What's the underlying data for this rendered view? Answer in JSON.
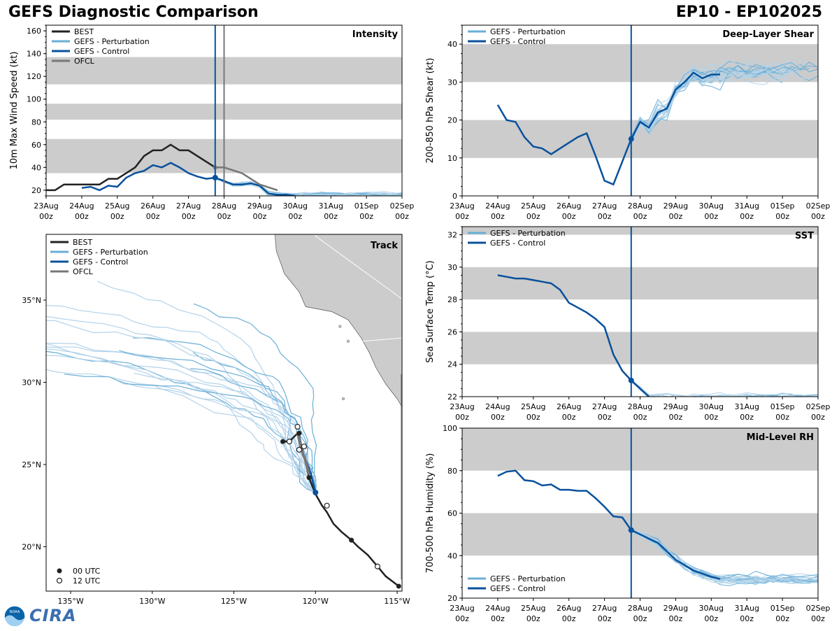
{
  "header": {
    "title": "GEFS Diagnostic Comparison",
    "storm_id": "EP10 - EP102025"
  },
  "logo": {
    "text": "CIRA",
    "noaa_text": "NOAA"
  },
  "colors": {
    "best": "#222222",
    "perturbation": "#6aaed6",
    "perturbation_faint": "#b3d3ea",
    "control": "#08519c",
    "ofcl": "#777777",
    "band": "#cccccc",
    "land": "#cccccc"
  },
  "time_axis": {
    "ticks": [
      0,
      1,
      2,
      3,
      4,
      5,
      6,
      7,
      8,
      9,
      10
    ],
    "labels_top": [
      "23Aug",
      "24Aug",
      "25Aug",
      "26Aug",
      "27Aug",
      "28Aug",
      "29Aug",
      "30Aug",
      "31Aug",
      "01Sep",
      "02Sep"
    ],
    "labels_bottom": [
      "00z",
      "00z",
      "00z",
      "00z",
      "00z",
      "00z",
      "00z",
      "00z",
      "00z",
      "00z",
      "00z"
    ],
    "range": [
      0,
      10
    ],
    "current_time": 4.75,
    "ofcl_time": 5.0
  },
  "chart_data": [
    {
      "id": "intensity",
      "type": "line",
      "title": "Intensity",
      "xlabel": "",
      "ylabel": "10m Max Wind Speed (kt)",
      "ylim": [
        15,
        165
      ],
      "yticks": [
        20,
        40,
        60,
        80,
        100,
        120,
        140,
        160
      ],
      "bands": [
        [
          35,
          65
        ],
        [
          82,
          96
        ],
        [
          113,
          137
        ]
      ],
      "legend": [
        "BEST",
        "GEFS - Perturbation",
        "GEFS - Control",
        "OFCL"
      ],
      "series": [
        {
          "name": "BEST",
          "x": [
            0,
            0.25,
            0.5,
            0.75,
            1,
            1.25,
            1.5,
            1.75,
            2,
            2.25,
            2.5,
            2.75,
            3,
            3.25,
            3.5,
            3.75,
            4,
            4.25,
            4.5,
            4.75
          ],
          "y": [
            20,
            20,
            25,
            25,
            25,
            25,
            25,
            30,
            30,
            35,
            40,
            50,
            55,
            55,
            60,
            55,
            55,
            50,
            45,
            40
          ]
        },
        {
          "name": "GEFS - Control",
          "x": [
            1,
            1.25,
            1.5,
            1.75,
            2,
            2.25,
            2.5,
            2.75,
            3,
            3.25,
            3.5,
            3.75,
            4,
            4.25,
            4.5,
            4.75,
            5,
            5.25,
            5.5,
            5.75,
            6,
            6.25,
            6.5,
            6.75,
            7
          ],
          "y": [
            22,
            23,
            20,
            24,
            23,
            31,
            35,
            37,
            42,
            40,
            44,
            40,
            35,
            32,
            30,
            31,
            28,
            25,
            25,
            26,
            24,
            17,
            16,
            16,
            15
          ]
        },
        {
          "name": "OFCL",
          "x": [
            4.75,
            5,
            5.5,
            6,
            6.5
          ],
          "y": [
            40,
            40,
            35,
            25,
            20
          ]
        }
      ],
      "perturbation_members": 20
    },
    {
      "id": "shear",
      "type": "line",
      "title": "Deep-Layer Shear",
      "xlabel": "",
      "ylabel": "200-850 hPa Shear (kt)",
      "ylim": [
        0,
        45
      ],
      "yticks": [
        0,
        10,
        20,
        30,
        40
      ],
      "bands": [
        [
          10,
          20
        ],
        [
          30,
          40
        ]
      ],
      "legend": [
        "GEFS - Perturbation",
        "GEFS - Control"
      ],
      "series": [
        {
          "name": "GEFS - Control",
          "x": [
            1,
            1.25,
            1.5,
            1.75,
            2,
            2.25,
            2.5,
            2.75,
            3,
            3.25,
            3.5,
            3.75,
            4,
            4.25,
            4.5,
            4.75,
            5,
            5.25,
            5.5,
            5.75,
            6,
            6.25,
            6.5,
            6.75,
            7,
            7.25
          ],
          "y": [
            24,
            20,
            19.5,
            15.5,
            13,
            12.5,
            11,
            12.5,
            14,
            15.5,
            16.5,
            10.5,
            4,
            3,
            9,
            15,
            19.5,
            18,
            22,
            23,
            28,
            30,
            32.5,
            31,
            32,
            32
          ]
        }
      ],
      "perturbation_members": 20
    },
    {
      "id": "sst",
      "type": "line",
      "title": "SST",
      "xlabel": "",
      "ylabel": "Sea Surface Temp (°C)",
      "ylim": [
        22,
        32.5
      ],
      "yticks": [
        22,
        24,
        26,
        28,
        30,
        32
      ],
      "bands": [
        [
          24,
          26
        ],
        [
          28,
          30
        ],
        [
          32,
          33
        ]
      ],
      "legend": [
        "GEFS - Perturbation",
        "GEFS - Control"
      ],
      "series": [
        {
          "name": "GEFS - Control",
          "x": [
            1,
            1.25,
            1.5,
            1.75,
            2,
            2.25,
            2.5,
            2.75,
            3,
            3.25,
            3.5,
            3.75,
            4,
            4.25,
            4.5,
            4.75,
            5,
            5.25
          ],
          "y": [
            29.5,
            29.4,
            29.3,
            29.3,
            29.2,
            29.1,
            29,
            28.6,
            27.8,
            27.5,
            27.2,
            26.8,
            26.3,
            24.6,
            23.6,
            23,
            22.5,
            22
          ]
        }
      ],
      "perturbation_members": 12
    },
    {
      "id": "rh",
      "type": "line",
      "title": "Mid-Level RH",
      "xlabel": "",
      "ylabel": "700-500 hPa Humidity (%)",
      "ylim": [
        20,
        100
      ],
      "yticks": [
        20,
        40,
        60,
        80,
        100
      ],
      "bands": [
        [
          40,
          60
        ],
        [
          80,
          100
        ]
      ],
      "legend": [
        "GEFS - Perturbation",
        "GEFS - Control"
      ],
      "series": [
        {
          "name": "GEFS - Control",
          "x": [
            1,
            1.25,
            1.5,
            1.75,
            2,
            2.25,
            2.5,
            2.75,
            3,
            3.25,
            3.5,
            3.75,
            4,
            4.25,
            4.5,
            4.75,
            5,
            5.5,
            6,
            6.5,
            7,
            7.25
          ],
          "y": [
            77.5,
            79.5,
            80,
            75.5,
            75,
            73,
            73.5,
            71,
            71,
            70.5,
            70.5,
            67,
            63,
            58.5,
            58,
            52,
            50,
            46,
            38,
            33,
            30,
            29
          ]
        }
      ],
      "perturbation_members": 20
    },
    {
      "id": "track",
      "type": "line",
      "title": "Track",
      "xlabel": "",
      "ylabel": "",
      "xlim": [
        -136.5,
        -114.7
      ],
      "ylim": [
        17.3,
        39
      ],
      "xticks": [
        -135,
        -130,
        -125,
        -120,
        -115
      ],
      "xtick_labels": [
        "135°W",
        "130°W",
        "125°W",
        "120°W",
        "115°W"
      ],
      "yticks": [
        20,
        25,
        30,
        35
      ],
      "ytick_labels": [
        "20°N",
        "25°N",
        "30°N",
        "35°N"
      ],
      "legend": [
        "BEST",
        "GEFS - Perturbation",
        "GEFS - Control",
        "OFCL"
      ],
      "legend_markers": [
        "00 UTC",
        "12 UTC"
      ],
      "series": [
        {
          "name": "BEST",
          "lon": [
            -114.9,
            -115.7,
            -116.2,
            -116.8,
            -117.4,
            -117.8,
            -118.4,
            -118.9,
            -119.3,
            -119.6,
            -120.0,
            -120.4,
            -120.7,
            -121.0,
            -121.1,
            -121.6,
            -122.0
          ],
          "lat": [
            17.6,
            18.2,
            18.8,
            19.5,
            20.0,
            20.4,
            20.9,
            21.4,
            22.1,
            22.5,
            23.2,
            24.2,
            25.5,
            26.6,
            26.9,
            26.4,
            26.4
          ]
        },
        {
          "name": "GEFS - Control",
          "lon": [
            -120.0,
            -120.3,
            -120.8,
            -121.0
          ],
          "lat": [
            23.3,
            24.5,
            25.8,
            26.8
          ]
        },
        {
          "name": "OFCL",
          "lon": [
            -120.4,
            -120.6,
            -120.9,
            -121.1
          ],
          "lat": [
            24.4,
            25.2,
            26.0,
            27.0
          ]
        }
      ],
      "best_00utc": [
        [
          -114.9,
          17.6
        ],
        [
          -117.8,
          20.4
        ],
        [
          -120.4,
          24.2
        ],
        [
          -121.0,
          26.9
        ],
        [
          -122.0,
          26.4
        ]
      ],
      "best_12utc": [
        [
          -116.2,
          18.8
        ],
        [
          -119.3,
          22.5
        ],
        [
          -120.7,
          26.1
        ],
        [
          -121.0,
          25.9
        ],
        [
          -121.1,
          27.3
        ],
        [
          -121.6,
          26.4
        ]
      ],
      "perturbation_members": 20
    }
  ]
}
